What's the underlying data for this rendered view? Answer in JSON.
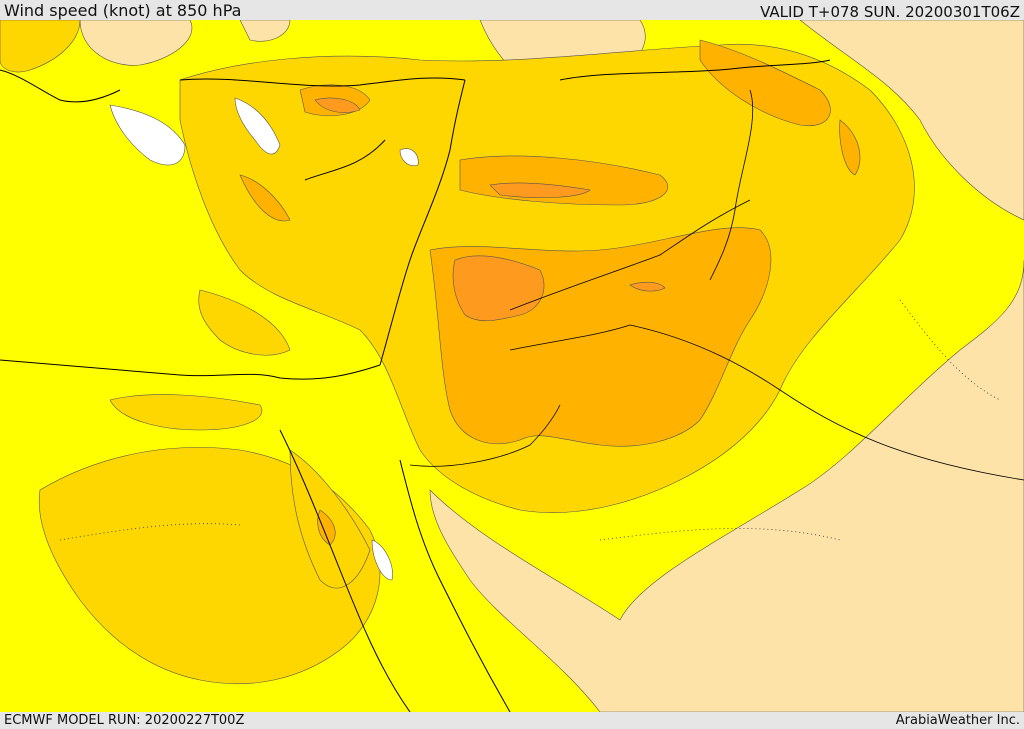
{
  "header": {
    "title": "Wind speed (knot) at 850 hPa",
    "valid": "VALID T+078 SUN. 20200301T06Z"
  },
  "footer": {
    "model_run": "ECMWF MODEL RUN: 20200227T00Z",
    "brand": "ArabiaWeather Inc."
  },
  "palette": {
    "low_wind": "#fde3a7",
    "yellow": "#ffff00",
    "gold": "#ffd700",
    "amber": "#ffb200",
    "orange": "#fe9a1e",
    "calm": "#ffffff",
    "border": "#000000"
  }
}
